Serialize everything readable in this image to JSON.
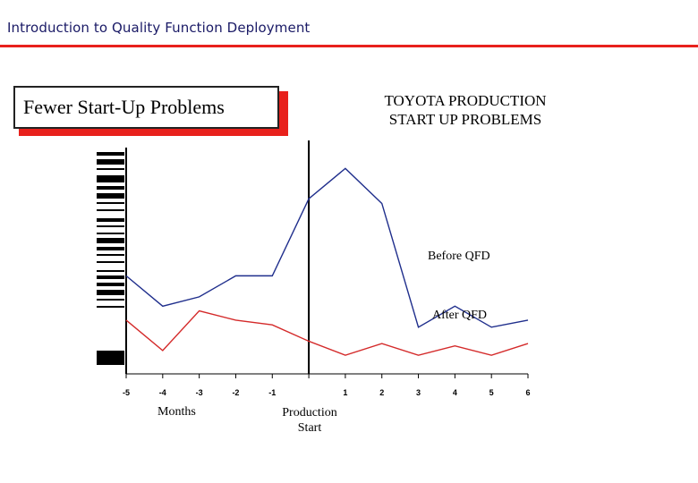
{
  "header": {
    "title": "Introduction to Quality Function Deployment"
  },
  "slide": {
    "box_title": "Fewer Start-Up Problems",
    "heading_line1": "TOYOTA PRODUCTION",
    "heading_line2": "START UP PROBLEMS"
  },
  "colors": {
    "accent": "#e8211c",
    "before": "#1f2e8c",
    "after": "#d42a2a"
  },
  "chart_data": {
    "type": "line",
    "categories": [
      "-5",
      "-4",
      "-3",
      "-2",
      "-1",
      "",
      "1",
      "2",
      "3",
      "4",
      "5",
      "6"
    ],
    "x": [
      -5,
      -4,
      -3,
      -2,
      -1,
      0,
      1,
      2,
      3,
      4,
      5,
      6
    ],
    "series": [
      {
        "name": "Before QFD",
        "values": [
          42,
          29,
          33,
          42,
          42,
          75,
          88,
          73,
          20,
          29,
          20,
          23
        ]
      },
      {
        "name": "After QFD",
        "values": [
          23,
          10,
          27,
          23,
          21,
          14,
          8,
          13,
          8,
          12,
          8,
          13
        ]
      }
    ],
    "xlabel": "Months",
    "marker_label": "Production Start",
    "ylabel": "",
    "ylim": [
      0,
      100
    ],
    "grid": false
  }
}
